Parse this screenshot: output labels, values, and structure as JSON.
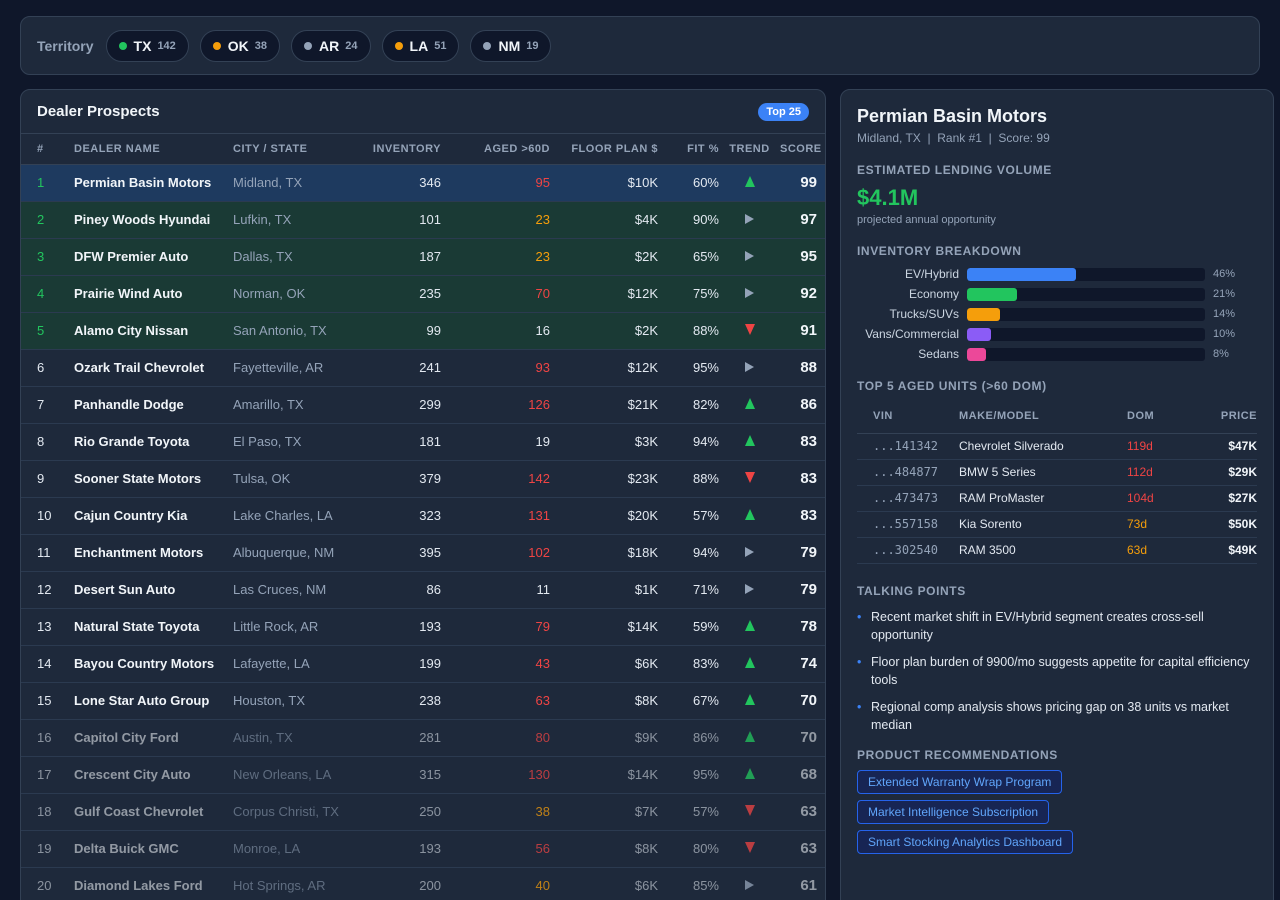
{
  "territory": {
    "label": "Territory",
    "chips": [
      {
        "code": "TX",
        "count": "142",
        "dot": "#22c55e"
      },
      {
        "code": "OK",
        "count": "38",
        "dot": "#f59e0b"
      },
      {
        "code": "AR",
        "count": "24",
        "dot": "#94a3b8"
      },
      {
        "code": "LA",
        "count": "51",
        "dot": "#f59e0b"
      },
      {
        "code": "NM",
        "count": "19",
        "dot": "#94a3b8"
      }
    ]
  },
  "prospects": {
    "title": "Dealer Prospects",
    "badge": "Top 25",
    "columns": [
      "#",
      "Dealer Name",
      "City / State",
      "Inventory",
      "Aged >60D",
      "Floor Plan $",
      "Fit %",
      "Trend",
      "Score"
    ],
    "rows": [
      {
        "rank": "1",
        "name": "Permian Basin Motors",
        "city": "Midland, TX",
        "inventory": "346",
        "aged": "95",
        "aged_level": "red",
        "floor": "$10K",
        "fit": "60%",
        "trend": "up",
        "score": "99",
        "state": "sel"
      },
      {
        "rank": "2",
        "name": "Piney Woods Hyundai",
        "city": "Lufkin, TX",
        "inventory": "101",
        "aged": "23",
        "aged_level": "orange",
        "floor": "$4K",
        "fit": "90%",
        "trend": "flat",
        "score": "97",
        "state": "hl"
      },
      {
        "rank": "3",
        "name": "DFW Premier Auto",
        "city": "Dallas, TX",
        "inventory": "187",
        "aged": "23",
        "aged_level": "orange",
        "floor": "$2K",
        "fit": "65%",
        "trend": "flat",
        "score": "95",
        "state": "hl"
      },
      {
        "rank": "4",
        "name": "Prairie Wind Auto",
        "city": "Norman, OK",
        "inventory": "235",
        "aged": "70",
        "aged_level": "red",
        "floor": "$12K",
        "fit": "75%",
        "trend": "flat",
        "score": "92",
        "state": "hl"
      },
      {
        "rank": "5",
        "name": "Alamo City Nissan",
        "city": "San Antonio, TX",
        "inventory": "99",
        "aged": "16",
        "aged_level": "plain",
        "floor": "$2K",
        "fit": "88%",
        "trend": "down",
        "score": "91",
        "state": "hl"
      },
      {
        "rank": "6",
        "name": "Ozark Trail Chevrolet",
        "city": "Fayetteville, AR",
        "inventory": "241",
        "aged": "93",
        "aged_level": "red",
        "floor": "$12K",
        "fit": "95%",
        "trend": "flat",
        "score": "88",
        "state": "none"
      },
      {
        "rank": "7",
        "name": "Panhandle Dodge",
        "city": "Amarillo, TX",
        "inventory": "299",
        "aged": "126",
        "aged_level": "red",
        "floor": "$21K",
        "fit": "82%",
        "trend": "up",
        "score": "86",
        "state": "none"
      },
      {
        "rank": "8",
        "name": "Rio Grande Toyota",
        "city": "El Paso, TX",
        "inventory": "181",
        "aged": "19",
        "aged_level": "plain",
        "floor": "$3K",
        "fit": "94%",
        "trend": "up",
        "score": "83",
        "state": "none"
      },
      {
        "rank": "9",
        "name": "Sooner State Motors",
        "city": "Tulsa, OK",
        "inventory": "379",
        "aged": "142",
        "aged_level": "red",
        "floor": "$23K",
        "fit": "88%",
        "trend": "down",
        "score": "83",
        "state": "none"
      },
      {
        "rank": "10",
        "name": "Cajun Country Kia",
        "city": "Lake Charles, LA",
        "inventory": "323",
        "aged": "131",
        "aged_level": "red",
        "floor": "$20K",
        "fit": "57%",
        "trend": "up",
        "score": "83",
        "state": "none"
      },
      {
        "rank": "11",
        "name": "Enchantment Motors",
        "city": "Albuquerque, NM",
        "inventory": "395",
        "aged": "102",
        "aged_level": "red",
        "floor": "$18K",
        "fit": "94%",
        "trend": "flat",
        "score": "79",
        "state": "none"
      },
      {
        "rank": "12",
        "name": "Desert Sun Auto",
        "city": "Las Cruces, NM",
        "inventory": "86",
        "aged": "11",
        "aged_level": "plain",
        "floor": "$1K",
        "fit": "71%",
        "trend": "flat",
        "score": "79",
        "state": "none"
      },
      {
        "rank": "13",
        "name": "Natural State Toyota",
        "city": "Little Rock, AR",
        "inventory": "193",
        "aged": "79",
        "aged_level": "red",
        "floor": "$14K",
        "fit": "59%",
        "trend": "up",
        "score": "78",
        "state": "none"
      },
      {
        "rank": "14",
        "name": "Bayou Country Motors",
        "city": "Lafayette, LA",
        "inventory": "199",
        "aged": "43",
        "aged_level": "red",
        "floor": "$6K",
        "fit": "83%",
        "trend": "up",
        "score": "74",
        "state": "none"
      },
      {
        "rank": "15",
        "name": "Lone Star Auto Group",
        "city": "Houston, TX",
        "inventory": "238",
        "aged": "63",
        "aged_level": "red",
        "floor": "$8K",
        "fit": "67%",
        "trend": "up",
        "score": "70",
        "state": "none"
      },
      {
        "rank": "16",
        "name": "Capitol City Ford",
        "city": "Austin, TX",
        "inventory": "281",
        "aged": "80",
        "aged_level": "red",
        "floor": "$9K",
        "fit": "86%",
        "trend": "up",
        "score": "70",
        "state": "dim"
      },
      {
        "rank": "17",
        "name": "Crescent City Auto",
        "city": "New Orleans, LA",
        "inventory": "315",
        "aged": "130",
        "aged_level": "red",
        "floor": "$14K",
        "fit": "95%",
        "trend": "up",
        "score": "68",
        "state": "dim"
      },
      {
        "rank": "18",
        "name": "Gulf Coast Chevrolet",
        "city": "Corpus Christi, TX",
        "inventory": "250",
        "aged": "38",
        "aged_level": "orange",
        "floor": "$7K",
        "fit": "57%",
        "trend": "down",
        "score": "63",
        "state": "dim"
      },
      {
        "rank": "19",
        "name": "Delta Buick GMC",
        "city": "Monroe, LA",
        "inventory": "193",
        "aged": "56",
        "aged_level": "red",
        "floor": "$8K",
        "fit": "80%",
        "trend": "down",
        "score": "63",
        "state": "dim"
      },
      {
        "rank": "20",
        "name": "Diamond Lakes Ford",
        "city": "Hot Springs, AR",
        "inventory": "200",
        "aged": "40",
        "aged_level": "orange",
        "floor": "$6K",
        "fit": "85%",
        "trend": "flat",
        "score": "61",
        "state": "dim"
      }
    ]
  },
  "detail": {
    "title": "Permian Basin Motors",
    "subtitle": "Midland, TX  |  Rank #1  |  Score: 99",
    "lending_head": "Estimated Lending Volume",
    "lending_value": "$4.1M",
    "lending_caption": "projected annual opportunity",
    "inventory_head": "Inventory Breakdown",
    "inventory": [
      {
        "label": "EV/Hybrid",
        "pct": "46%",
        "value": 46,
        "color": "#3b82f6"
      },
      {
        "label": "Economy",
        "pct": "21%",
        "value": 21,
        "color": "#22c55e"
      },
      {
        "label": "Trucks/SUVs",
        "pct": "14%",
        "value": 14,
        "color": "#f59e0b"
      },
      {
        "label": "Vans/Commercial",
        "pct": "10%",
        "value": 10,
        "color": "#8b5cf6"
      },
      {
        "label": "Sedans",
        "pct": "8%",
        "value": 8,
        "color": "#ec4899"
      }
    ],
    "aged_head": "Top 5 Aged Units (>60 DOM)",
    "aged_columns": [
      "VIN",
      "Make/Model",
      "DOM",
      "Price"
    ],
    "aged_units": [
      {
        "vin": "...141342",
        "model": "Chevrolet Silverado",
        "dom": "119d",
        "dom_level": "red",
        "price": "$47K"
      },
      {
        "vin": "...484877",
        "model": "BMW 5 Series",
        "dom": "112d",
        "dom_level": "red",
        "price": "$29K"
      },
      {
        "vin": "...473473",
        "model": "RAM ProMaster",
        "dom": "104d",
        "dom_level": "red",
        "price": "$27K"
      },
      {
        "vin": "...557158",
        "model": "Kia Sorento",
        "dom": "73d",
        "dom_level": "orange",
        "price": "$50K"
      },
      {
        "vin": "...302540",
        "model": "RAM 3500",
        "dom": "63d",
        "dom_level": "orange",
        "price": "$49K"
      }
    ],
    "talking_head": "Talking Points",
    "talking_points": [
      "Recent market shift in EV/Hybrid segment creates cross-sell opportunity",
      "Floor plan burden of 9900/mo suggests appetite for capital efficiency tools",
      "Regional comp analysis shows pricing gap on 38 units vs market median"
    ],
    "rec_head": "Product Recommendations",
    "recommendations": [
      "Extended Warranty Wrap Program",
      "Market Intelligence Subscription",
      "Smart Stocking Analytics Dashboard"
    ]
  }
}
